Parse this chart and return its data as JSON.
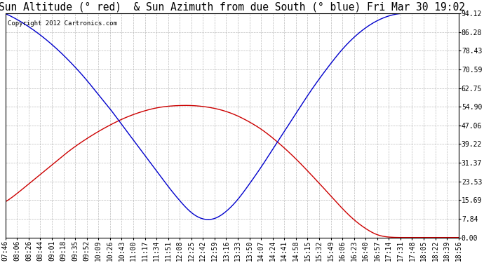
{
  "title": "Sun Altitude (° red)  & Sun Azimuth from due South (° blue) Fri Mar 30 19:02",
  "copyright": "Copyright 2012 Cartronics.com",
  "yticks": [
    0.0,
    7.84,
    15.69,
    23.53,
    31.37,
    39.22,
    47.06,
    54.9,
    62.75,
    70.59,
    78.43,
    86.28,
    94.12
  ],
  "ylim": [
    0.0,
    94.12
  ],
  "x_labels": [
    "07:46",
    "08:06",
    "08:26",
    "08:44",
    "09:01",
    "09:18",
    "09:35",
    "09:52",
    "10:09",
    "10:26",
    "10:43",
    "11:00",
    "11:17",
    "11:34",
    "11:51",
    "12:08",
    "12:25",
    "12:42",
    "12:59",
    "13:16",
    "13:33",
    "13:50",
    "14:07",
    "14:24",
    "14:41",
    "14:58",
    "15:15",
    "15:32",
    "15:49",
    "16:06",
    "16:23",
    "16:40",
    "16:57",
    "17:14",
    "17:31",
    "17:48",
    "18:05",
    "18:22",
    "18:39",
    "18:56"
  ],
  "background_color": "#ffffff",
  "plot_bg_color": "#ffffff",
  "grid_color": "#aaaaaa",
  "title_fontsize": 10.5,
  "tick_fontsize": 7,
  "line_blue_color": "#0000cc",
  "line_red_color": "#cc0000",
  "alt_values": [
    15.0,
    18.5,
    22.5,
    26.5,
    30.5,
    34.5,
    38.2,
    41.5,
    44.5,
    47.2,
    49.6,
    51.6,
    53.2,
    54.4,
    55.1,
    55.4,
    55.4,
    55.0,
    54.2,
    52.9,
    51.0,
    48.5,
    45.5,
    41.8,
    37.6,
    33.0,
    28.0,
    22.8,
    17.5,
    12.2,
    7.5,
    3.8,
    1.2,
    0.2,
    0.0,
    0.0,
    0.0,
    0.0,
    0.0,
    0.0
  ],
  "az_values": [
    94.0,
    91.5,
    88.5,
    85.0,
    81.0,
    76.5,
    71.5,
    66.0,
    60.0,
    54.0,
    47.5,
    41.0,
    34.5,
    28.0,
    21.5,
    15.5,
    10.5,
    7.84,
    8.0,
    11.0,
    16.0,
    22.5,
    29.5,
    37.0,
    44.5,
    52.0,
    59.5,
    66.5,
    73.0,
    79.0,
    84.0,
    88.0,
    91.0,
    93.0,
    94.0,
    94.1,
    94.12,
    94.12,
    94.12,
    94.12
  ]
}
